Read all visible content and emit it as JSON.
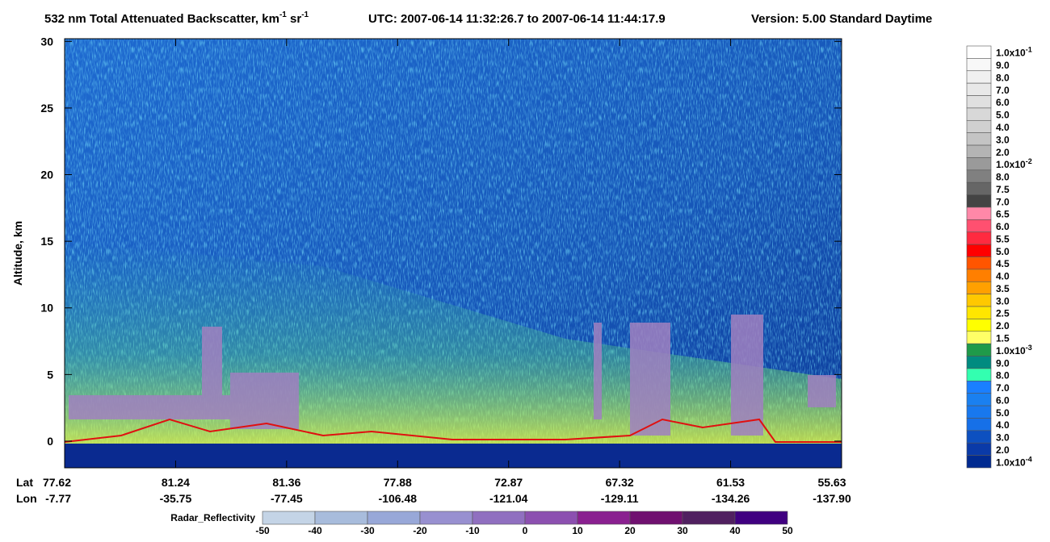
{
  "chart_data": {
    "type": "heatmap",
    "title": {
      "main": "532 nm Total Attenuated Backscatter, km",
      "sup1": "-1",
      "mid": " sr",
      "sup2": "-1",
      "utc": "UTC:  2007-06-14 11:32:26.7  to  2007-06-14 11:44:17.9",
      "version": "Version: 5.00  Standard  Daytime"
    },
    "y_label": "Altitude, km",
    "ylim": [
      -2,
      30.2
    ],
    "yticks": [
      0,
      5,
      10,
      15,
      20,
      25,
      30
    ],
    "x_rows": [
      {
        "name": "Lat",
        "labels": [
          "77.62",
          "81.24",
          "81.36",
          "77.88",
          "72.87",
          "67.32",
          "61.53",
          "55.63"
        ]
      },
      {
        "name": "Lon",
        "labels": [
          "-7.77",
          "-35.75",
          "-77.45",
          "-106.48",
          "-121.04",
          "-129.11",
          "-134.26",
          "-137.90"
        ]
      }
    ],
    "colorbar": {
      "levels": [
        {
          "label": "1.0x10",
          "sup": "-1"
        },
        {
          "label": "9.0"
        },
        {
          "label": "8.0"
        },
        {
          "label": "7.0"
        },
        {
          "label": "6.0"
        },
        {
          "label": "5.0"
        },
        {
          "label": "4.0"
        },
        {
          "label": "3.0"
        },
        {
          "label": "2.0"
        },
        {
          "label": "1.0x10",
          "sup": "-2"
        },
        {
          "label": "8.0"
        },
        {
          "label": "7.5"
        },
        {
          "label": "7.0"
        },
        {
          "label": "6.5"
        },
        {
          "label": "6.0"
        },
        {
          "label": "5.5"
        },
        {
          "label": "5.0"
        },
        {
          "label": "4.5"
        },
        {
          "label": "4.0"
        },
        {
          "label": "3.5"
        },
        {
          "label": "3.0"
        },
        {
          "label": "2.5"
        },
        {
          "label": "2.0"
        },
        {
          "label": "1.5"
        },
        {
          "label": "1.0x10",
          "sup": "-3"
        },
        {
          "label": "9.0"
        },
        {
          "label": "8.0"
        },
        {
          "label": "7.0"
        },
        {
          "label": "6.0"
        },
        {
          "label": "5.0"
        },
        {
          "label": "4.0"
        },
        {
          "label": "3.0"
        },
        {
          "label": "2.0"
        },
        {
          "label": "1.0x10",
          "sup": "-4"
        }
      ],
      "colors": [
        "#ffffff",
        "#f8f8f8",
        "#f0f0f0",
        "#e8e8e8",
        "#e0e0e0",
        "#d8d8d8",
        "#d0d0d0",
        "#c4c4c4",
        "#b4b4b4",
        "#9a9a9a",
        "#808080",
        "#666666",
        "#444444",
        "#ff88a8",
        "#ff5070",
        "#ff2a40",
        "#ff0000",
        "#ff5500",
        "#ff7f00",
        "#ffa000",
        "#ffc800",
        "#ffe600",
        "#ffff00",
        "#ffff66",
        "#1f9a4a",
        "#008b80",
        "#33ffb0",
        "#1a7fff",
        "#1a80f0",
        "#1878ee",
        "#1670e8",
        "#0d50c0",
        "#0a3aa8",
        "#002a90"
      ]
    },
    "radar_colorbar": {
      "name": "Radar_Reflectivity",
      "ticks": [
        -50,
        -40,
        -30,
        -20,
        -10,
        0,
        10,
        20,
        30,
        40,
        50
      ],
      "colors": [
        "#c4d4e6",
        "#a8bcdc",
        "#98a8d8",
        "#9890d0",
        "#9070c0",
        "#8c50b0",
        "#8a2090",
        "#701070",
        "#502060",
        "#400080"
      ]
    }
  }
}
